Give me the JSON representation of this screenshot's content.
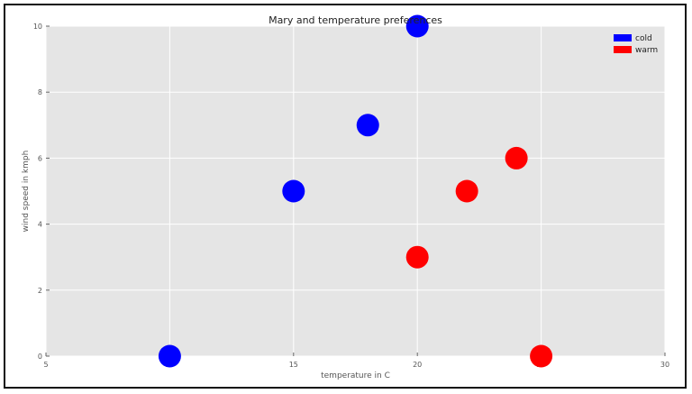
{
  "chart_data": {
    "type": "scatter",
    "title": "Mary and temperature preferences",
    "xlabel": "temperature in C",
    "ylabel": "wind speed in kmph",
    "xlim": [
      5,
      30
    ],
    "ylim": [
      0,
      10
    ],
    "xticks": [
      "5",
      "10",
      "15",
      "20",
      "25",
      "30"
    ],
    "yticks": [
      "0",
      "2",
      "4",
      "6",
      "8",
      "10"
    ],
    "grid": true,
    "legend_position": "top-right",
    "series": [
      {
        "name": "cold",
        "color": "#0000ff",
        "points": [
          {
            "x": 10,
            "y": 0
          },
          {
            "x": 15,
            "y": 5
          },
          {
            "x": 18,
            "y": 7
          },
          {
            "x": 20,
            "y": 10
          }
        ]
      },
      {
        "name": "warm",
        "color": "#ff0000",
        "points": [
          {
            "x": 20,
            "y": 3
          },
          {
            "x": 22,
            "y": 5
          },
          {
            "x": 24,
            "y": 6
          },
          {
            "x": 25,
            "y": 0
          }
        ]
      }
    ]
  }
}
